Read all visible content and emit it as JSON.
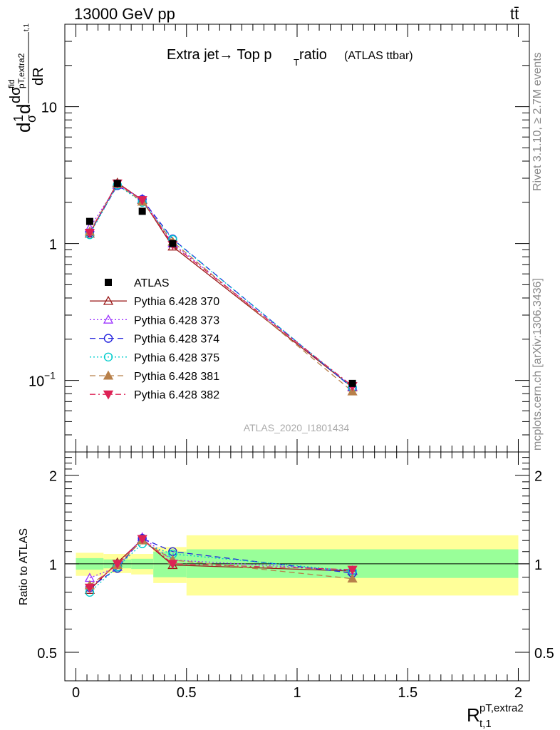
{
  "header": {
    "energy_label": "13000 GeV pp",
    "process_label": "tt̄"
  },
  "side_labels": {
    "rivet": "Rivet 3.1.10, ≥ 2.7M events",
    "mcplots": "mcplots.cern.ch [arXiv:1306.3436]"
  },
  "watermark": "ATLAS_2020_I1801434",
  "colors": {
    "data": "#000000",
    "band_inner": "#99ff99",
    "band_outer": "#ffff99",
    "p370": "#9b1b1b",
    "p373": "#9b30ff",
    "p374": "#2222dd",
    "p375": "#00cccc",
    "p381": "#b8804a",
    "p382": "#dd2255"
  },
  "chart_data": [
    {
      "type": "scatter",
      "title_main": "Extra jet→ Top p",
      "title_sub": "T",
      "title_tail": " ratio",
      "title_small": "(ATLAS ttbar)",
      "ylabel": "d(1/σ) dσ^fid_pT,extra2 / dR_t,1",
      "ylog": true,
      "ylim": [
        0.03,
        40
      ],
      "xlim": [
        -0.05,
        2.05
      ],
      "yticks": [
        {
          "v": 0.1,
          "base": "10",
          "exp": "−1"
        },
        {
          "v": 1,
          "t": "1"
        },
        {
          "v": 10,
          "t": "10"
        }
      ],
      "legend_position": "left-middle",
      "x": [
        0.0625,
        0.1875,
        0.3,
        0.4375,
        1.25
      ],
      "data": {
        "name": "ATLAS",
        "values": [
          1.45,
          2.75,
          1.72,
          1.0,
          0.095
        ]
      },
      "series": [
        {
          "name": "Pythia 6.428 370",
          "key": "p370",
          "marker": "tri-up-open",
          "dash": "",
          "values": [
            1.18,
            2.78,
            2.08,
            0.95,
            0.089
          ]
        },
        {
          "name": "Pythia 6.428 373",
          "key": "p373",
          "marker": "tri-up-open",
          "dash": "2,3",
          "values": [
            1.3,
            2.68,
            2.12,
            1.0,
            0.09
          ]
        },
        {
          "name": "Pythia 6.428 374",
          "key": "p374",
          "marker": "circle-open",
          "dash": "8,5",
          "values": [
            1.2,
            2.65,
            2.1,
            1.08,
            0.088
          ]
        },
        {
          "name": "Pythia 6.428 375",
          "key": "p375",
          "marker": "circle-open",
          "dash": "2,3",
          "values": [
            1.16,
            2.68,
            2.0,
            1.07,
            0.089
          ]
        },
        {
          "name": "Pythia 6.428 381",
          "key": "p381",
          "marker": "tri-up-filled",
          "dash": "8,5",
          "values": [
            1.22,
            2.72,
            2.02,
            1.03,
            0.083
          ]
        },
        {
          "name": "Pythia 6.428 382",
          "key": "p382",
          "marker": "tri-down-filled",
          "dash": "8,4,2,4",
          "values": [
            1.2,
            2.75,
            2.08,
            0.98,
            0.091
          ]
        }
      ]
    },
    {
      "type": "scatter",
      "ylabel": "Ratio to ATLAS",
      "xlabel_main": "R",
      "xlabel_sup": "pT,extra2",
      "xlabel_sub": "t,1",
      "ylog": true,
      "ylim": [
        0.4,
        2.4
      ],
      "xlim": [
        -0.05,
        2.05
      ],
      "xticks": [
        {
          "v": 0,
          "t": "0"
        },
        {
          "v": 0.5,
          "t": "0.5"
        },
        {
          "v": 1,
          "t": "1"
        },
        {
          "v": 1.5,
          "t": "1.5"
        },
        {
          "v": 2,
          "t": "2"
        }
      ],
      "yticks": [
        {
          "v": 0.5,
          "t": "0.5"
        },
        {
          "v": 1,
          "t": "1"
        },
        {
          "v": 2,
          "t": "2"
        }
      ],
      "bands": [
        {
          "x0": 0.0,
          "x1": 0.125,
          "inner": [
            0.955,
            1.045
          ],
          "outer": [
            0.91,
            1.09
          ]
        },
        {
          "x0": 0.125,
          "x1": 0.25,
          "inner": [
            0.965,
            1.035
          ],
          "outer": [
            0.93,
            1.08
          ]
        },
        {
          "x0": 0.25,
          "x1": 0.35,
          "inner": [
            0.96,
            1.04
          ],
          "outer": [
            0.92,
            1.08
          ]
        },
        {
          "x0": 0.35,
          "x1": 0.5,
          "inner": [
            0.9,
            1.1
          ],
          "outer": [
            0.86,
            1.14
          ]
        },
        {
          "x0": 0.5,
          "x1": 2.0,
          "inner": [
            0.895,
            1.12
          ],
          "outer": [
            0.78,
            1.25
          ]
        }
      ],
      "x": [
        0.0625,
        0.1875,
        0.3,
        0.4375,
        1.25
      ],
      "series": [
        {
          "key": "p370",
          "marker": "tri-up-open",
          "dash": "",
          "values": [
            0.815,
            1.01,
            1.21,
            0.99,
            0.945
          ]
        },
        {
          "key": "p373",
          "marker": "tri-up-open",
          "dash": "2,3",
          "values": [
            0.895,
            0.975,
            1.23,
            1.03,
            0.95
          ]
        },
        {
          "key": "p374",
          "marker": "circle-open",
          "dash": "8,5",
          "values": [
            0.83,
            0.965,
            1.22,
            1.1,
            0.93
          ]
        },
        {
          "key": "p375",
          "marker": "circle-open",
          "dash": "2,3",
          "values": [
            0.8,
            0.975,
            1.17,
            1.08,
            0.945
          ]
        },
        {
          "key": "p381",
          "marker": "tri-up-filled",
          "dash": "8,5",
          "values": [
            0.845,
            0.99,
            1.2,
            1.03,
            0.89
          ]
        },
        {
          "key": "p382",
          "marker": "tri-down-filled",
          "dash": "8,4,2,4",
          "values": [
            0.83,
            1.0,
            1.215,
            1.0,
            0.955
          ]
        }
      ]
    }
  ]
}
